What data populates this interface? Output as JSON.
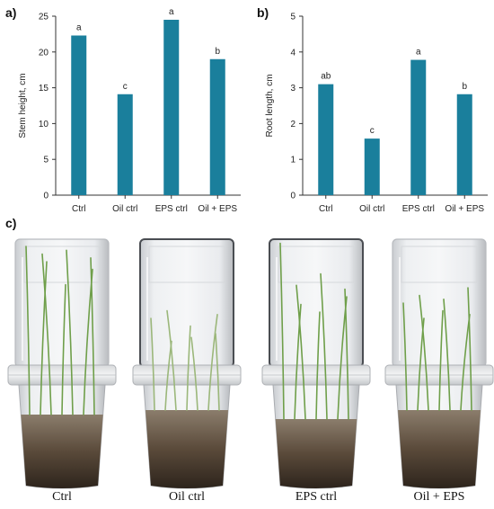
{
  "panels": {
    "a": "a)",
    "b": "b)",
    "c": "c)"
  },
  "colors": {
    "bar": "#1a7f9c",
    "axis": "#333333"
  },
  "chart_data": [
    {
      "type": "bar",
      "title": "",
      "xlabel": "",
      "ylabel": "Stem height, cm",
      "ylim": [
        0,
        25
      ],
      "yticks": [
        0,
        5,
        10,
        15,
        20,
        25
      ],
      "categories": [
        "Ctrl",
        "Oil ctrl",
        "EPS ctrl",
        "Oil + EPS"
      ],
      "values": [
        22.3,
        14.1,
        24.5,
        19.0
      ],
      "significance": [
        "a",
        "c",
        "a",
        "b"
      ],
      "grid": false
    },
    {
      "type": "bar",
      "title": "",
      "xlabel": "",
      "ylabel": "Root length, cm",
      "ylim": [
        0,
        5
      ],
      "yticks": [
        0,
        1,
        2,
        3,
        4,
        5
      ],
      "categories": [
        "Ctrl",
        "Oil ctrl",
        "EPS ctrl",
        "Oil + EPS"
      ],
      "values": [
        3.1,
        1.58,
        3.78,
        2.82
      ],
      "significance": [
        "ab",
        "c",
        "a",
        "b"
      ],
      "grid": false
    }
  ],
  "photo": {
    "captions": [
      "Ctrl",
      "Oil ctrl",
      "EPS ctrl",
      "Oil + EPS"
    ]
  }
}
